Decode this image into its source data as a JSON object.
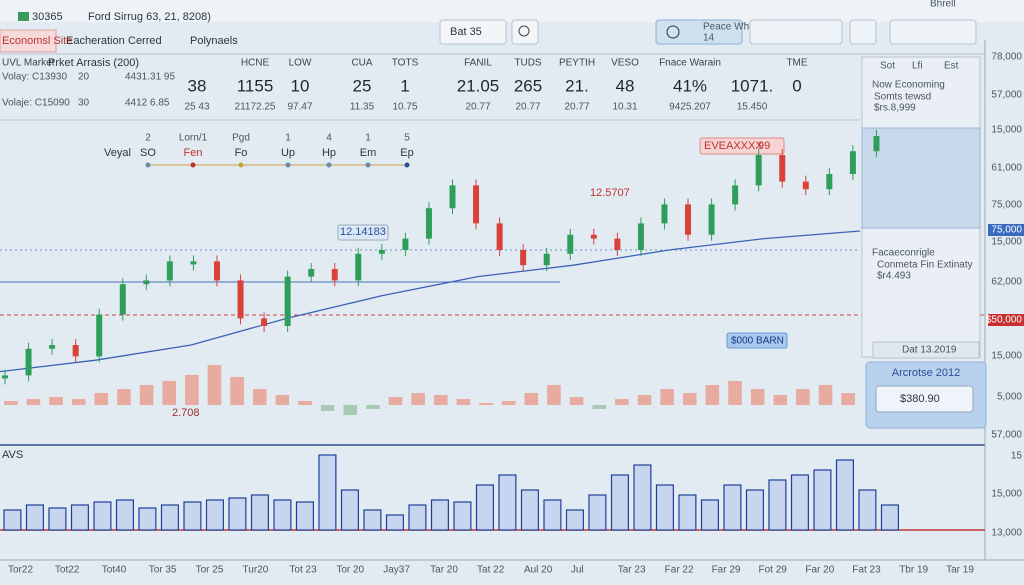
{
  "header": {
    "symbol": "30365",
    "title": "Ford Sirrug 63, 21, 8208)",
    "user": "Bhrell"
  },
  "toolbar": {
    "tabs": [
      "Economsl Site",
      "Eacheration",
      "Cerred",
      "Polynaels"
    ],
    "interval": "Bat 35",
    "watch": "Peace Wh",
    "watch_sub": "14"
  },
  "stats": {
    "market": "UVL Market",
    "analysis": "Prket Arrasis (200)",
    "rows": [
      [
        "Volay: C13930",
        "20",
        "4431.31 95"
      ],
      [
        "Volaje: C15090",
        "30",
        "4412 6.85"
      ]
    ],
    "columns": [
      {
        "value": "38",
        "sub": "25 43"
      },
      {
        "head": "HCNE",
        "value": "1155",
        "sub": "21172.25"
      },
      {
        "head": "LOW",
        "value": "10",
        "sub": "97.47"
      },
      {
        "head": "CUA",
        "value": "25",
        "sub": "11.35"
      },
      {
        "head": "TOTS",
        "value": "1",
        "sub": "10.75"
      },
      {
        "head": "FANIL",
        "value": "21.05",
        "sub": "20.77"
      },
      {
        "head": "TUDS",
        "value": "265",
        "sub": "20.77"
      },
      {
        "head": "PEYTIH",
        "value": "21.",
        "sub": "20.77"
      },
      {
        "head": "VESO",
        "value": "48",
        "sub": "10.31"
      },
      {
        "head": "Fnace Warain",
        "value": "41%",
        "sub": "9425.207"
      },
      {
        "value": "1071.",
        "sub": "15.450"
      },
      {
        "head": "TME",
        "value": "0"
      }
    ]
  },
  "indicators": {
    "label": "Veyal",
    "items": [
      {
        "num": "2",
        "label": "SO"
      },
      {
        "num": "Lorn/1",
        "label": "Fen"
      },
      {
        "num": "Pgd",
        "label": "Fo"
      },
      {
        "num": "1",
        "label": "Up"
      },
      {
        "num": "4",
        "label": "Hp"
      },
      {
        "num": "1",
        "label": "Em"
      },
      {
        "num": "5",
        "label": "Ep"
      }
    ]
  },
  "annotations": {
    "level1": "12.14183",
    "level2": "12.5707",
    "alert": "EVEAXXXX",
    "alert_num": "99",
    "low": "2.708",
    "badge": "$000 BARN"
  },
  "side_panel": {
    "top": {
      "title": "Now Economing",
      "line": "Somts tewsd",
      "value": "$rs.8,999",
      "tabs": [
        "Sot",
        "Lfi",
        "Est"
      ]
    },
    "mid": {
      "title": "Facaeconrigle",
      "line": "Conmeta Fin Extinaty",
      "value": "$r4.493"
    },
    "date": "Dat 13.2019",
    "box": {
      "title": "Arcrotse 2012",
      "input": "$380.90"
    }
  },
  "chart": {
    "candles": [
      17,
      24,
      25,
      22,
      33,
      41,
      42,
      47,
      47,
      42,
      32,
      30,
      43,
      45,
      42,
      49,
      50,
      53,
      61,
      67,
      57,
      50,
      46,
      49,
      54,
      53,
      50,
      57,
      62,
      54,
      62,
      67,
      75,
      68,
      66,
      70,
      76,
      80
    ],
    "ma": [
      18,
      21,
      25,
      32,
      38,
      43,
      46,
      50,
      53,
      55
    ],
    "oscillator": [
      2,
      3,
      4,
      3,
      6,
      8,
      10,
      12,
      15,
      20,
      14,
      8,
      5,
      2,
      -3,
      -5,
      -2,
      4,
      6,
      5,
      3,
      1,
      2,
      6,
      10,
      4,
      -2,
      3,
      5,
      8,
      6,
      10,
      12,
      8,
      5,
      8,
      10,
      6
    ],
    "volume_label": "AVS",
    "volume": [
      20,
      25,
      22,
      25,
      28,
      30,
      22,
      25,
      28,
      30,
      32,
      35,
      30,
      28,
      75,
      40,
      20,
      15,
      25,
      30,
      28,
      45,
      55,
      40,
      30,
      20,
      35,
      55,
      65,
      45,
      35,
      30,
      45,
      40,
      50,
      55,
      60,
      70,
      40,
      25
    ],
    "x_labels": [
      "Tor22",
      "Tot22",
      "Tot40",
      "Tor 35",
      "Tor 25",
      "Tur20",
      "Tot 23",
      "Tor 20",
      "Jay37",
      "Tar 20",
      "Tat 22",
      "Aul 20",
      "Jul",
      "Tar 23",
      "Far 22",
      "Far 29",
      "Fot 29",
      "Far 20",
      "Fat 23",
      "Tbr 19",
      "Tar 19"
    ],
    "price_labels": [
      "78,000",
      "57,000",
      "15,000",
      "61,000",
      "75,000",
      "75,000",
      "15,000",
      "62,000",
      "$50,000",
      "15,000",
      "5,000",
      "57,000",
      "15",
      "15,000",
      "13,000"
    ]
  }
}
